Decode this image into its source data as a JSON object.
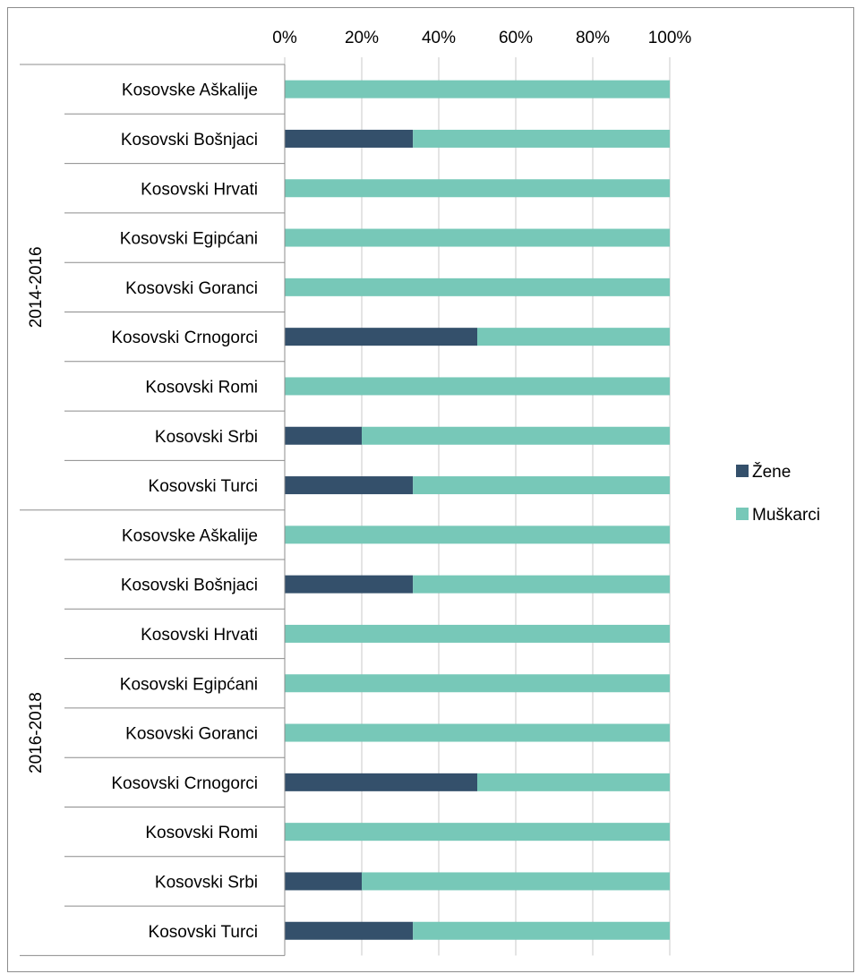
{
  "chart_data": {
    "type": "bar",
    "orientation": "horizontal",
    "stacked": "percent",
    "x_ticks": [
      "0%",
      "20%",
      "40%",
      "60%",
      "80%",
      "100%"
    ],
    "xlim": [
      0,
      100
    ],
    "x_axis_position": "top",
    "grid": true,
    "legend_position": "right",
    "groups": [
      {
        "label": "2014-2016",
        "categories": [
          "Kosovske Aškalije",
          "Kosovski Bošnjaci",
          "Kosovski Hrvati",
          "Kosovski Egipćani",
          "Kosovski Goranci",
          "Kosovski Crnogorci",
          "Kosovski Romi",
          "Kosovski Srbi",
          "Kosovski Turci"
        ],
        "series": [
          {
            "name": "Žene",
            "values": [
              0,
              33.3,
              0,
              0,
              0,
              50,
              0,
              20,
              33.3
            ]
          },
          {
            "name": "Muškarci",
            "values": [
              100,
              66.7,
              100,
              100,
              100,
              50,
              100,
              80,
              66.7
            ]
          }
        ]
      },
      {
        "label": "2016-2018",
        "categories": [
          "Kosovske Aškalije",
          "Kosovski Bošnjaci",
          "Kosovski Hrvati",
          "Kosovski Egipćani",
          "Kosovski Goranci",
          "Kosovski Crnogorci",
          "Kosovski Romi",
          "Kosovski Srbi",
          "Kosovski Turci"
        ],
        "series": [
          {
            "name": "Žene",
            "values": [
              0,
              33.3,
              0,
              0,
              0,
              50,
              0,
              20,
              33.3
            ]
          },
          {
            "name": "Muškarci",
            "values": [
              100,
              66.7,
              100,
              100,
              100,
              50,
              100,
              80,
              66.7
            ]
          }
        ]
      }
    ],
    "legend": [
      {
        "name": "Žene",
        "color": "#34506b"
      },
      {
        "name": "Muškarci",
        "color": "#77c8b8"
      }
    ]
  }
}
